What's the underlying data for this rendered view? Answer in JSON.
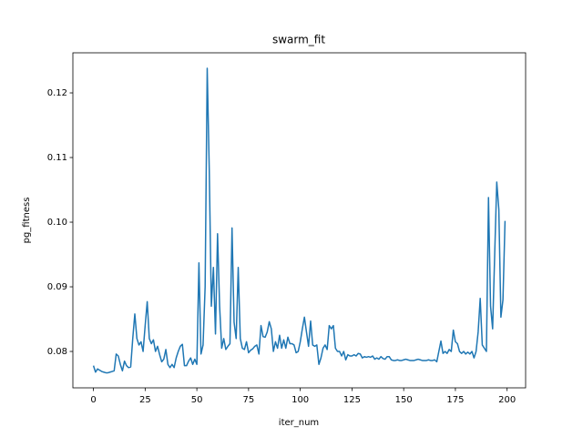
{
  "chart_data": {
    "type": "line",
    "title": "swarm_fit",
    "x_label": "iter_num",
    "y_label": "pg_fitness",
    "xlim": [
      -9.95,
      208.95
    ],
    "ylim": [
      0.07437,
      0.1262
    ],
    "xticks": [
      0,
      25,
      50,
      75,
      100,
      125,
      150,
      175,
      200
    ],
    "yticks": [
      0.08,
      0.09,
      {
        "value": 0.1,
        "label": "0.10"
      },
      0.11,
      0.12
    ],
    "series": [
      {
        "name": "pg_fitness",
        "color": "#1f77b4",
        "x": [
          0,
          1,
          2,
          3,
          4,
          5,
          6,
          7,
          8,
          9,
          10,
          11,
          12,
          13,
          14,
          15,
          16,
          17,
          18,
          19,
          20,
          21,
          22,
          23,
          24,
          25,
          26,
          27,
          28,
          29,
          30,
          31,
          32,
          33,
          34,
          35,
          36,
          37,
          38,
          39,
          40,
          41,
          42,
          43,
          44,
          45,
          46,
          47,
          48,
          49,
          50,
          51,
          52,
          53,
          54,
          55,
          56,
          57,
          58,
          59,
          60,
          61,
          62,
          63,
          64,
          65,
          66,
          67,
          68,
          69,
          70,
          71,
          72,
          73,
          74,
          75,
          76,
          77,
          78,
          79,
          80,
          81,
          82,
          83,
          84,
          85,
          86,
          87,
          88,
          89,
          90,
          91,
          92,
          93,
          94,
          95,
          96,
          97,
          98,
          99,
          100,
          101,
          102,
          103,
          104,
          105,
          106,
          107,
          108,
          109,
          110,
          111,
          112,
          113,
          114,
          115,
          116,
          117,
          118,
          119,
          120,
          121,
          122,
          123,
          124,
          125,
          126,
          127,
          128,
          129,
          130,
          131,
          132,
          133,
          134,
          135,
          136,
          137,
          138,
          139,
          140,
          141,
          142,
          143,
          144,
          145,
          146,
          147,
          148,
          149,
          150,
          151,
          152,
          153,
          154,
          155,
          156,
          157,
          158,
          159,
          160,
          161,
          162,
          163,
          164,
          165,
          166,
          167,
          168,
          169,
          170,
          171,
          172,
          173,
          174,
          175,
          176,
          177,
          178,
          179,
          180,
          181,
          182,
          183,
          184,
          185,
          186,
          187,
          188,
          189,
          190,
          191,
          192,
          193,
          194,
          195,
          196,
          197,
          198,
          199
        ],
        "values": [
          0.0778,
          0.0768,
          0.0773,
          0.0771,
          0.0769,
          0.0768,
          0.0767,
          0.0767,
          0.0768,
          0.0769,
          0.077,
          0.0796,
          0.0793,
          0.078,
          0.077,
          0.0785,
          0.0778,
          0.0775,
          0.0776,
          0.082,
          0.0858,
          0.082,
          0.081,
          0.0815,
          0.08,
          0.084,
          0.0877,
          0.082,
          0.0812,
          0.0818,
          0.08,
          0.0808,
          0.0795,
          0.0784,
          0.0788,
          0.0803,
          0.078,
          0.0775,
          0.078,
          0.0775,
          0.079,
          0.08,
          0.0808,
          0.0811,
          0.0778,
          0.0778,
          0.0785,
          0.079,
          0.078,
          0.0788,
          0.078,
          0.0937,
          0.0796,
          0.081,
          0.09,
          0.1238,
          0.108,
          0.087,
          0.093,
          0.0827,
          0.0982,
          0.087,
          0.0805,
          0.082,
          0.0803,
          0.0808,
          0.0812,
          0.0991,
          0.0845,
          0.082,
          0.093,
          0.082,
          0.0805,
          0.0803,
          0.0815,
          0.0798,
          0.0802,
          0.0804,
          0.0808,
          0.081,
          0.0796,
          0.084,
          0.0823,
          0.0822,
          0.083,
          0.0846,
          0.0835,
          0.08,
          0.0815,
          0.0805,
          0.0825,
          0.0805,
          0.0818,
          0.0805,
          0.0822,
          0.0812,
          0.0812,
          0.081,
          0.0798,
          0.08,
          0.0815,
          0.0835,
          0.0853,
          0.083,
          0.0808,
          0.0847,
          0.081,
          0.0808,
          0.081,
          0.078,
          0.079,
          0.0805,
          0.081,
          0.0803,
          0.084,
          0.0835,
          0.084,
          0.0805,
          0.08,
          0.08,
          0.0793,
          0.08,
          0.0787,
          0.0795,
          0.0793,
          0.0793,
          0.0795,
          0.0793,
          0.0797,
          0.0796,
          0.079,
          0.0792,
          0.0791,
          0.0792,
          0.0791,
          0.0793,
          0.0788,
          0.079,
          0.0788,
          0.0792,
          0.0789,
          0.0788,
          0.0792,
          0.0792,
          0.0787,
          0.0786,
          0.0786,
          0.0787,
          0.0786,
          0.0786,
          0.0787,
          0.0788,
          0.0787,
          0.0786,
          0.0786,
          0.0786,
          0.0787,
          0.0788,
          0.0787,
          0.0786,
          0.0786,
          0.0786,
          0.0787,
          0.0786,
          0.0786,
          0.0787,
          0.0784,
          0.08,
          0.0816,
          0.0797,
          0.08,
          0.0797,
          0.0803,
          0.08,
          0.0833,
          0.0815,
          0.0812,
          0.08,
          0.0797,
          0.08,
          0.0796,
          0.0799,
          0.0796,
          0.08,
          0.079,
          0.08,
          0.083,
          0.0882,
          0.081,
          0.0805,
          0.08,
          0.1038,
          0.087,
          0.0835,
          0.095,
          0.1062,
          0.102,
          0.0853,
          0.088,
          0.1002
        ]
      }
    ]
  }
}
